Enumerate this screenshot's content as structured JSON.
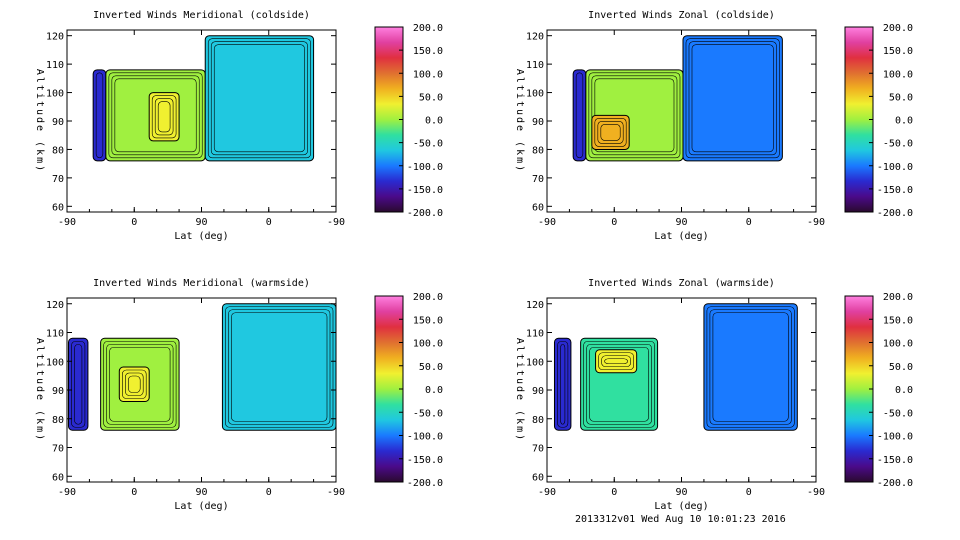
{
  "footer": "2013312v01 Wed Aug 10 10:01:23 2016",
  "colorbar": {
    "ticks": [
      "200.0",
      "150.0",
      "100.0",
      "50.0",
      "0.0",
      "-50.0",
      "-100.0",
      "-150.0",
      "-200.0"
    ],
    "stops": [
      "#2a0a2e",
      "#4a0a8a",
      "#2a2ad0",
      "#1a7aff",
      "#20c8e0",
      "#30e0a0",
      "#a0f040",
      "#f0f030",
      "#f0b020",
      "#e07030",
      "#e03040",
      "#e040a0",
      "#ff80e0"
    ]
  },
  "chart_data": [
    {
      "type": "heatmap",
      "title": "Inverted Winds Meridional (coldside)",
      "xlabel": "Lat (deg)",
      "ylabel": "Altitude (km)",
      "xticks": [
        "-90",
        "0",
        "90",
        "0",
        "-90"
      ],
      "yticks": [
        "60",
        "70",
        "80",
        "90",
        "100",
        "110",
        "120"
      ],
      "ylim": [
        58,
        122
      ],
      "blocks": [
        {
          "x0": -55,
          "x1": -38,
          "y0": 76,
          "y1": 108,
          "level": -120
        },
        {
          "x0": -38,
          "x1": 95,
          "y0": 76,
          "y1": 108,
          "level": 0
        },
        {
          "x0": 20,
          "x1": 60,
          "y0": 83,
          "y1": 100,
          "level": 30
        },
        {
          "x0": 95,
          "x1": 240,
          "y0": 76,
          "y1": 120,
          "level": -80
        }
      ]
    },
    {
      "type": "heatmap",
      "title": "Inverted Winds Zonal (coldside)",
      "xlabel": "Lat (deg)",
      "ylabel": "Altitude (km)",
      "xticks": [
        "-90",
        "0",
        "90",
        "0",
        "-90"
      ],
      "yticks": [
        "60",
        "70",
        "80",
        "90",
        "100",
        "110",
        "120"
      ],
      "ylim": [
        58,
        122
      ],
      "blocks": [
        {
          "x0": -55,
          "x1": -38,
          "y0": 76,
          "y1": 108,
          "level": -140
        },
        {
          "x0": -38,
          "x1": 92,
          "y0": 76,
          "y1": 108,
          "level": 0
        },
        {
          "x0": -30,
          "x1": 20,
          "y0": 80,
          "y1": 92,
          "level": 50
        },
        {
          "x0": 92,
          "x1": 225,
          "y0": 76,
          "y1": 120,
          "level": -90
        }
      ]
    },
    {
      "type": "heatmap",
      "title": "Inverted Winds Meridional (warmside)",
      "xlabel": "Lat (deg)",
      "ylabel": "Altitude (km)",
      "xticks": [
        "-90",
        "0",
        "90",
        "0",
        "-90"
      ],
      "yticks": [
        "60",
        "70",
        "80",
        "90",
        "100",
        "110",
        "120"
      ],
      "ylim": [
        58,
        122
      ],
      "blocks": [
        {
          "x0": -88,
          "x1": -62,
          "y0": 76,
          "y1": 108,
          "level": -130
        },
        {
          "x0": -45,
          "x1": 60,
          "y0": 76,
          "y1": 108,
          "level": 0
        },
        {
          "x0": -20,
          "x1": 20,
          "y0": 86,
          "y1": 98,
          "level": 30
        },
        {
          "x0": 118,
          "x1": 270,
          "y0": 76,
          "y1": 120,
          "level": -60
        }
      ]
    },
    {
      "type": "heatmap",
      "title": "Inverted Winds Zonal (warmside)",
      "xlabel": "Lat (deg)",
      "ylabel": "Altitude (km)",
      "xticks": [
        "-90",
        "0",
        "90",
        "0",
        "-90"
      ],
      "yticks": [
        "60",
        "70",
        "80",
        "90",
        "100",
        "110",
        "120"
      ],
      "ylim": [
        58,
        122
      ],
      "blocks": [
        {
          "x0": -80,
          "x1": -58,
          "y0": 76,
          "y1": 108,
          "level": -140
        },
        {
          "x0": -45,
          "x1": 58,
          "y0": 76,
          "y1": 108,
          "level": -20
        },
        {
          "x0": -25,
          "x1": 30,
          "y0": 96,
          "y1": 104,
          "level": 20
        },
        {
          "x0": 120,
          "x1": 245,
          "y0": 76,
          "y1": 120,
          "level": -100
        }
      ]
    }
  ]
}
